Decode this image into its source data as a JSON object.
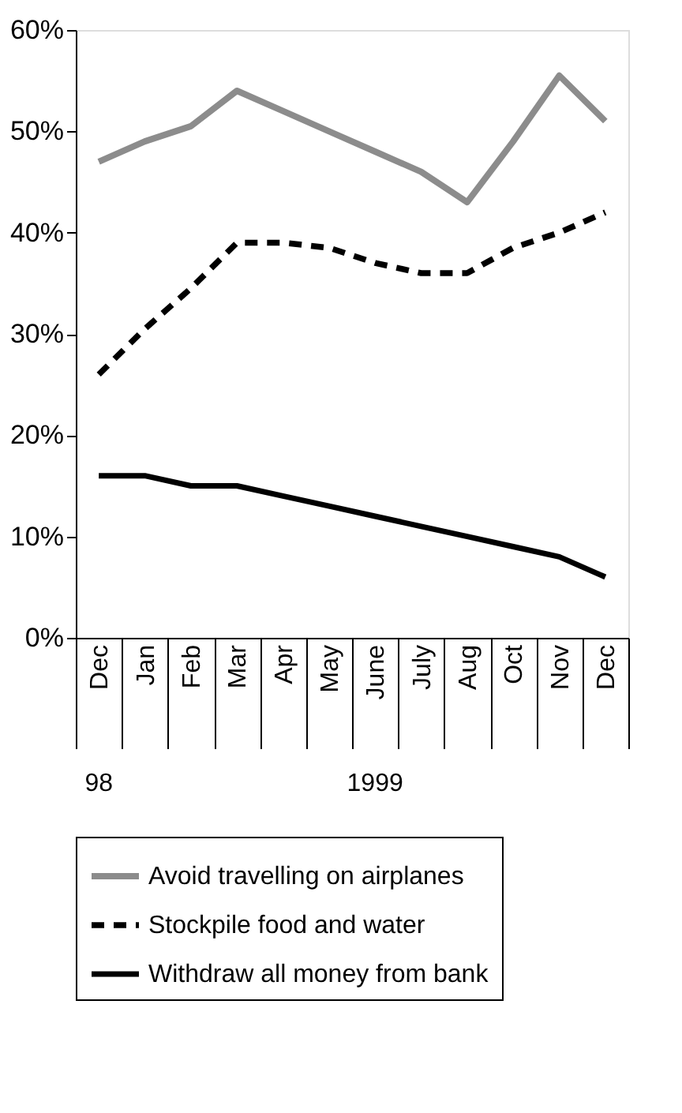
{
  "chart_data": {
    "type": "line",
    "categories": [
      "Dec",
      "Jan",
      "Feb",
      "Mar",
      "Apr",
      "May",
      "June",
      "July",
      "Aug",
      "Oct",
      "Nov",
      "Dec"
    ],
    "series": [
      {
        "name": "Avoid travelling on airplanes",
        "color": "#8c8c8c",
        "line_style": "solid",
        "values": [
          47,
          49,
          50.5,
          54,
          52,
          50,
          48,
          46,
          43,
          49,
          55.5,
          51
        ]
      },
      {
        "name": "Stockpile food and water",
        "color": "#000000",
        "line_style": "dashed",
        "values": [
          26,
          30.5,
          34.5,
          39,
          39,
          38.5,
          37,
          36,
          36,
          38.5,
          40,
          42
        ]
      },
      {
        "name": "Withdraw all money from bank",
        "color": "#000000",
        "line_style": "solid",
        "values": [
          16,
          16,
          15,
          15,
          14,
          13,
          12,
          11,
          10,
          9,
          8,
          6
        ]
      }
    ],
    "ylim": [
      0,
      60
    ],
    "yticks": [
      {
        "value": 0,
        "label": "0%"
      },
      {
        "value": 10,
        "label": "10%"
      },
      {
        "value": 20,
        "label": "20%"
      },
      {
        "value": 30,
        "label": "30%"
      },
      {
        "value": 40,
        "label": "40%"
      },
      {
        "value": 50,
        "label": "50%"
      },
      {
        "value": 60,
        "label": "60%"
      }
    ],
    "annotations": [
      "98",
      "1999"
    ],
    "grid": false,
    "legend": "bottom",
    "marker": "none"
  }
}
